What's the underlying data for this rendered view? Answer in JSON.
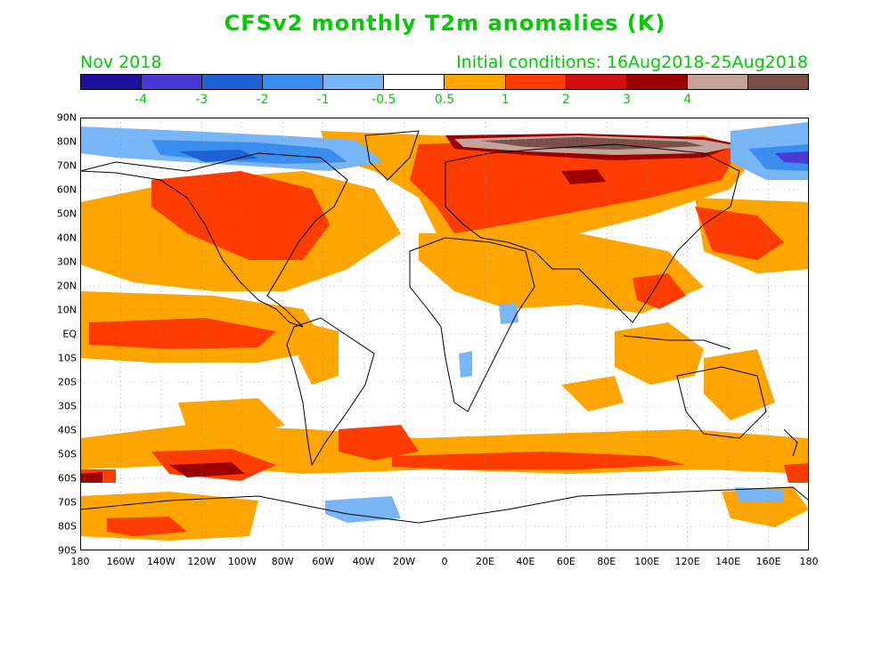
{
  "title": "CFSv2 monthly T2m anomalies (K)",
  "subtitle_left": "Nov 2018",
  "subtitle_right": "Initial conditions: 16Aug2018-25Aug2018",
  "colorbar": {
    "colors": [
      "#1e0f9c",
      "#4b39d6",
      "#1f62d3",
      "#3a8ef0",
      "#79b6f8",
      "#ffffff",
      "#ffa500",
      "#ff3c00",
      "#d01010",
      "#9c0000",
      "#c4a39a",
      "#7a5048"
    ],
    "labels": [
      "-4",
      "-3",
      "-2",
      "-1",
      "-0.5",
      "0.5",
      "1",
      "2",
      "3",
      "4"
    ]
  },
  "lat_labels": [
    "90N",
    "80N",
    "70N",
    "60N",
    "50N",
    "40N",
    "30N",
    "20N",
    "10N",
    "EQ",
    "10S",
    "20S",
    "30S",
    "40S",
    "50S",
    "60S",
    "70S",
    "80S",
    "90S"
  ],
  "lon_labels": [
    "180",
    "160W",
    "140W",
    "120W",
    "100W",
    "80W",
    "60W",
    "40W",
    "20W",
    "0",
    "20E",
    "40E",
    "60E",
    "80E",
    "100E",
    "120E",
    "140E",
    "160E",
    "180"
  ],
  "colors": {
    "text_accent": "#00cc00",
    "land_outline": "#000000",
    "grid": "#888888"
  }
}
